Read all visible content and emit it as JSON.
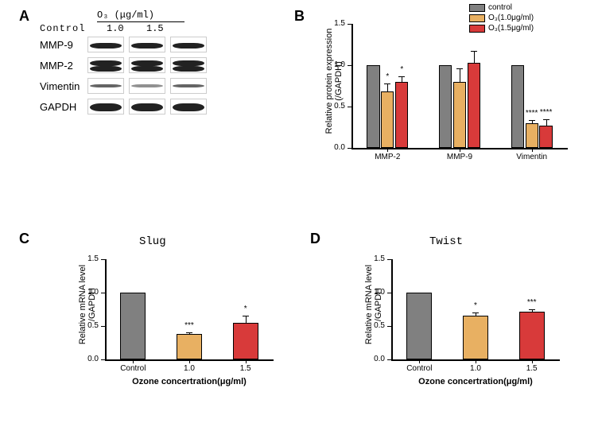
{
  "panelA": {
    "label": "A",
    "header_unit": "O₃ (μg/ml)",
    "lanes": [
      "Control",
      "1.0",
      "1.5"
    ],
    "rows": [
      "MMP-9",
      "MMP-2",
      "Vimentin",
      "GAPDH"
    ]
  },
  "panelB": {
    "label": "B",
    "type": "grouped-bar",
    "ylabel": "Relative protein expression\n(/GAPDH)",
    "ylim": [
      0,
      1.5
    ],
    "ytick_step": 0.5,
    "legend": [
      {
        "label": "control",
        "color": "#808080"
      },
      {
        "label": "O₃(1.0μg/ml)",
        "color": "#e8b062"
      },
      {
        "label": "O₃(1.5μg/ml)",
        "color": "#d83a3a"
      }
    ],
    "groups": [
      "MMP-2",
      "MMP-9",
      "Vimentin"
    ],
    "values": [
      [
        1.0,
        0.68,
        0.8
      ],
      [
        1.0,
        0.8,
        1.03
      ],
      [
        1.0,
        0.3,
        0.27
      ]
    ],
    "errors": [
      [
        0,
        0.1,
        0.07
      ],
      [
        0,
        0.16,
        0.14
      ],
      [
        0,
        0.04,
        0.08
      ]
    ],
    "sig": [
      [
        "",
        "*",
        "*"
      ],
      [
        "",
        "",
        ""
      ],
      [
        "",
        "****",
        "****"
      ]
    ],
    "colors": [
      "#808080",
      "#e8b062",
      "#d83a3a"
    ],
    "background_color": "#ffffff"
  },
  "panelC": {
    "label": "C",
    "type": "bar",
    "title": "Slug",
    "ylabel": "Relative mRNA level\n/GAPDH",
    "xlabel": "Ozone  concertration(μg/ml)",
    "ylim": [
      0,
      1.5
    ],
    "ytick_step": 0.5,
    "categories": [
      "Control",
      "1.0",
      "1.5"
    ],
    "values": [
      1.0,
      0.38,
      0.55
    ],
    "errors": [
      0,
      0.03,
      0.11
    ],
    "sig": [
      "",
      "***",
      "*"
    ],
    "colors": [
      "#808080",
      "#e8b062",
      "#d83a3a"
    ]
  },
  "panelD": {
    "label": "D",
    "type": "bar",
    "title": "Twist",
    "ylabel": "Relative mRNA level\n/GAPDH",
    "xlabel": "Ozone  concertration(μg/ml)",
    "ylim": [
      0,
      1.5
    ],
    "ytick_step": 0.5,
    "categories": [
      "Control",
      "1.0",
      "1.5"
    ],
    "values": [
      1.0,
      0.66,
      0.72
    ],
    "errors": [
      0,
      0.04,
      0.03
    ],
    "sig": [
      "",
      "*",
      "***"
    ],
    "colors": [
      "#808080",
      "#e8b062",
      "#d83a3a"
    ]
  }
}
